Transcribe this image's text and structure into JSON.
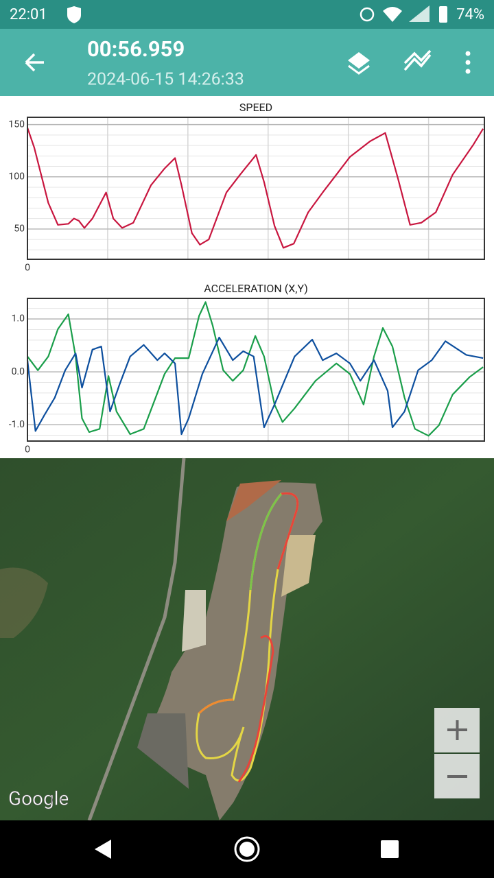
{
  "status_bar": {
    "time": "22:01",
    "battery": "74%"
  },
  "toolbar": {
    "title": "00:56.959",
    "subtitle": "2024-06-15 14:26:33"
  },
  "chart_data": [
    {
      "type": "line",
      "title": "SPEED",
      "xlim": [
        0,
        56.959
      ],
      "xticks": [
        0
      ],
      "xgrid": [
        10,
        20,
        30,
        40,
        50
      ],
      "ylim": [
        21,
        157
      ],
      "yticks": [
        50,
        100,
        150
      ],
      "yminor": [
        30,
        40,
        60,
        70,
        80,
        90,
        110,
        120,
        130,
        140
      ],
      "series": [
        {
          "color": "#c8163f",
          "x": [
            0,
            0.85,
            2.6,
            3.8,
            5.1,
            5.8,
            6.4,
            7.1,
            8.1,
            9.8,
            10.7,
            11.8,
            13.2,
            15.4,
            17.1,
            18.4,
            19.2,
            20.5,
            21.5,
            22.6,
            24.8,
            26.5,
            28.5,
            29.5,
            30.8,
            31.9,
            33.2,
            35.0,
            36.8,
            38.5,
            40.2,
            42.7,
            44.6,
            46.2,
            47.7,
            49.1,
            50.9,
            53.0,
            55.6,
            56.8
          ],
          "values": [
            147,
            128,
            75,
            54,
            55,
            60,
            58,
            51,
            60,
            85,
            60,
            51,
            56,
            92,
            108,
            118,
            92,
            46,
            35,
            40,
            85,
            102,
            121,
            95,
            53,
            32,
            36,
            66,
            85,
            102,
            119,
            134,
            142,
            98,
            54,
            56,
            66,
            102,
            131,
            146
          ]
        }
      ]
    },
    {
      "type": "line",
      "title": "ACCELERATION (X,Y)",
      "xlim": [
        0,
        56.959
      ],
      "xticks": [
        0
      ],
      "xgrid": [
        10,
        20,
        30,
        40,
        50
      ],
      "ylim": [
        -1.31,
        1.39
      ],
      "yticks": [
        {
          "value": -1,
          "label": "-1.0"
        },
        {
          "value": 0,
          "label": "0.0"
        },
        {
          "value": 1,
          "label": "1.0"
        }
      ],
      "yminor": [
        -1.2,
        -0.8,
        -0.6,
        -0.4,
        -0.2,
        0.2,
        0.4,
        0.6,
        0.8,
        1.2
      ],
      "series": [
        {
          "color": "#1a9e4a",
          "x": [
            0,
            1.3,
            2.6,
            3.8,
            5.1,
            6.0,
            6.8,
            7.7,
            9.0,
            10.1,
            11.1,
            12.8,
            14.5,
            17.1,
            18.4,
            20.1,
            21.4,
            22.2,
            23.1,
            24.4,
            25.6,
            26.9,
            28.4,
            29.5,
            30.8,
            31.8,
            33.3,
            35.9,
            38.5,
            40.2,
            41.9,
            43.2,
            44.3,
            45.5,
            47.0,
            48.3,
            50.0,
            51.3,
            53.0,
            55.1,
            56.8
          ],
          "values": [
            0.29,
            0.03,
            0.29,
            0.81,
            1.09,
            0.29,
            -0.88,
            -1.14,
            -1.08,
            -0.08,
            -0.75,
            -1.18,
            -1.08,
            -0.04,
            0.26,
            0.26,
            1.06,
            1.32,
            0.87,
            0.03,
            -0.17,
            0.03,
            0.68,
            0.29,
            -0.62,
            -0.95,
            -0.69,
            -0.17,
            0.16,
            -0.04,
            -0.62,
            0.29,
            0.83,
            0.48,
            -0.49,
            -1.08,
            -1.21,
            -1.01,
            -0.43,
            -0.1,
            0.09
          ]
        },
        {
          "color": "#0d4f9e",
          "x": [
            0,
            1.0,
            2.1,
            3.4,
            4.7,
            6.0,
            6.8,
            8.1,
            9.2,
            10.3,
            11.5,
            12.8,
            14.5,
            16.2,
            17.1,
            18.4,
            19.2,
            20.1,
            21.8,
            23.9,
            25.6,
            26.9,
            28.2,
            29.5,
            30.8,
            33.3,
            35.5,
            36.8,
            38.5,
            40.2,
            41.5,
            43.2,
            44.9,
            45.5,
            47.0,
            48.7,
            50.4,
            52.1,
            54.7,
            56.8
          ],
          "values": [
            0.22,
            -1.12,
            -0.82,
            -0.49,
            0.03,
            0.35,
            -0.3,
            0.42,
            0.48,
            -0.75,
            -0.23,
            0.29,
            0.51,
            0.22,
            0.35,
            0.16,
            -1.18,
            -0.88,
            -0.04,
            0.65,
            0.22,
            0.39,
            0.29,
            -1.05,
            -0.62,
            0.29,
            0.61,
            0.22,
            0.35,
            0.16,
            -0.17,
            0.22,
            -0.36,
            -1.05,
            -0.75,
            0.03,
            0.22,
            0.58,
            0.32,
            0.26
          ]
        }
      ]
    }
  ],
  "map": {
    "attribution": "Google"
  }
}
